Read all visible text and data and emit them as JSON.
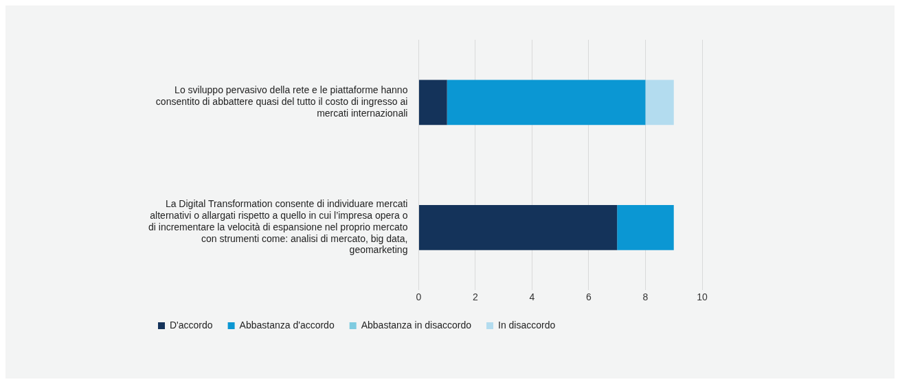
{
  "chart_data": {
    "type": "bar",
    "orientation": "horizontal",
    "stacked": true,
    "categories": [
      "Lo sviluppo pervasivo della rete e le piattaforme hanno consentito di abbattere quasi del tutto il costo di ingresso ai mercati internazionali",
      "La Digital Transformation consente di individuare mercati alternativi o allargati rispetto a quello in cui l’impresa opera o di incrementare la velocità di espansione nel proprio mercato con strumenti come: analisi di mercato, big data, geomarketing"
    ],
    "series": [
      {
        "name": "D'accordo",
        "color": "#14335a",
        "values": [
          1,
          7
        ]
      },
      {
        "name": "Abbastanza d'accordo",
        "color": "#0b97d3",
        "values": [
          7,
          2
        ]
      },
      {
        "name": "Abbastanza in disaccordo",
        "color": "#7ecbe0",
        "values": [
          0,
          0
        ]
      },
      {
        "name": "In disaccordo",
        "color": "#b3dcef",
        "values": [
          1,
          0
        ]
      }
    ],
    "xlim": [
      0,
      10
    ],
    "xticks": [
      0,
      2,
      4,
      6,
      8,
      10
    ],
    "grid": "x",
    "legend": "bottom"
  }
}
